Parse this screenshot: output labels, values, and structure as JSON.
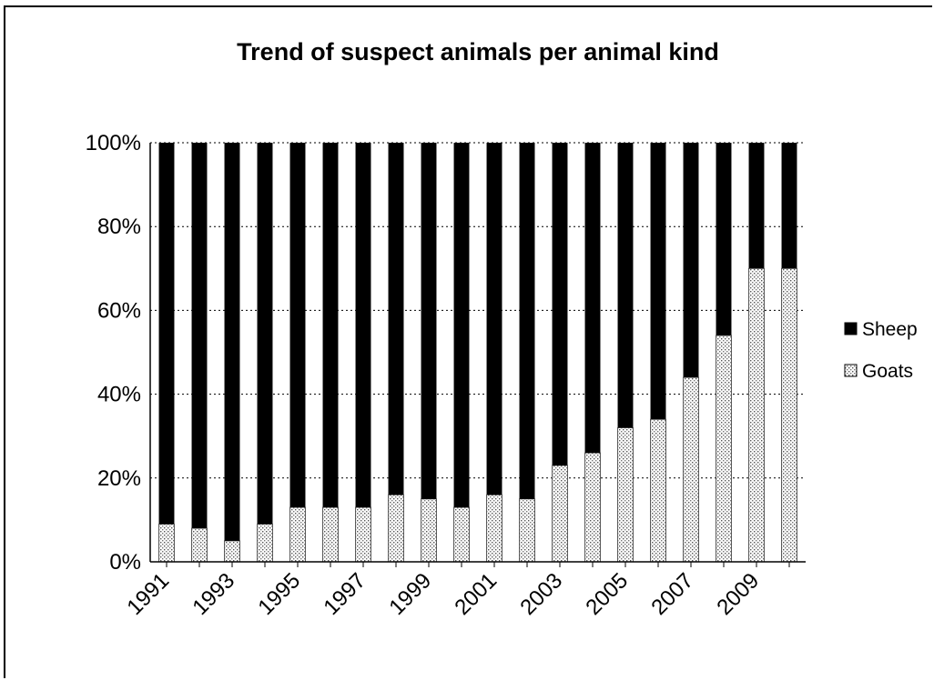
{
  "chart_data": {
    "type": "bar",
    "stacked": true,
    "normalized_percent": true,
    "title": "Trend of suspect animals per animal kind",
    "xlabel": "",
    "ylabel": "",
    "categories": [
      "1991",
      "1992",
      "1993",
      "1994",
      "1995",
      "1996",
      "1997",
      "1998",
      "1999",
      "2000",
      "2001",
      "2002",
      "2003",
      "2004",
      "2005",
      "2006",
      "2007",
      "2008",
      "2009",
      "2010"
    ],
    "x_tick_labels": [
      "1991",
      "1993",
      "1995",
      "1997",
      "1999",
      "2001",
      "2003",
      "2005",
      "2007",
      "2009"
    ],
    "y_tick_labels": [
      "0%",
      "20%",
      "40%",
      "60%",
      "80%",
      "100%"
    ],
    "ylim": [
      0,
      100
    ],
    "grid": true,
    "legend_position": "right",
    "series": [
      {
        "name": "Sheep",
        "color": "#000000",
        "values": [
          91,
          92,
          95,
          91,
          87,
          87,
          87,
          84,
          85,
          87,
          84,
          85,
          77,
          74,
          68,
          66,
          56,
          46,
          30,
          30
        ]
      },
      {
        "name": "Goats",
        "color": "#ffffff",
        "pattern": "dotted",
        "values": [
          9,
          8,
          5,
          9,
          13,
          13,
          13,
          16,
          15,
          13,
          16,
          15,
          23,
          26,
          32,
          34,
          44,
          54,
          70,
          70
        ]
      }
    ]
  }
}
